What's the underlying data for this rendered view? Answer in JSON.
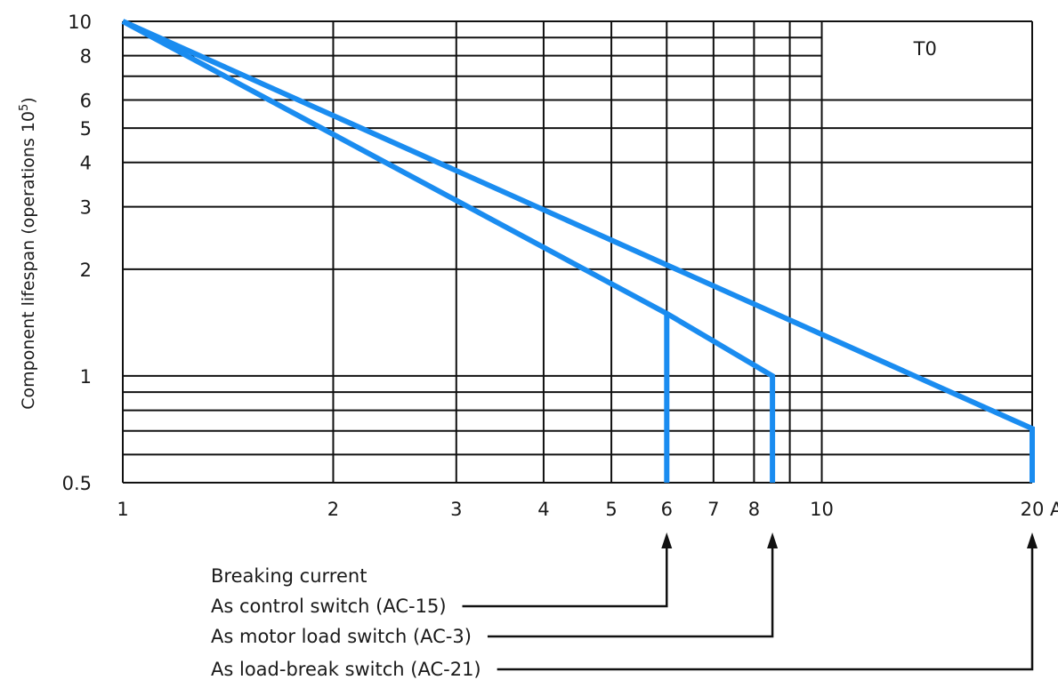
{
  "chart_data": {
    "type": "line",
    "ylabel": "Component lifespan (operations 10",
    "ylabel_sup": "5",
    "ylabel_close": ")",
    "x_scale": "log",
    "y_scale": "log",
    "xlim": [
      1,
      20
    ],
    "ylim": [
      0.5,
      10
    ],
    "x_ticks": [
      {
        "value": 1,
        "label": "1"
      },
      {
        "value": 2,
        "label": "2"
      },
      {
        "value": 3,
        "label": "3"
      },
      {
        "value": 4,
        "label": "4"
      },
      {
        "value": 5,
        "label": "5"
      },
      {
        "value": 6,
        "label": "6"
      },
      {
        "value": 7,
        "label": "7"
      },
      {
        "value": 8,
        "label": "8"
      },
      {
        "value": 10,
        "label": "10"
      },
      {
        "value": 20,
        "label": "20"
      }
    ],
    "x_unit": "A",
    "y_ticks": [
      {
        "value": 0.5,
        "label": "0.5"
      },
      {
        "value": 1,
        "label": "1"
      },
      {
        "value": 2,
        "label": "2"
      },
      {
        "value": 3,
        "label": "3"
      },
      {
        "value": 4,
        "label": "4"
      },
      {
        "value": 5,
        "label": "5"
      },
      {
        "value": 6,
        "label": "6"
      },
      {
        "value": 8,
        "label": "8"
      },
      {
        "value": 10,
        "label": "10"
      }
    ],
    "x_gridlines": [
      1,
      2,
      3,
      4,
      5,
      6,
      7,
      8,
      9,
      10,
      20
    ],
    "y_gridlines": [
      0.5,
      0.6,
      0.7,
      0.8,
      0.9,
      1,
      2,
      3,
      4,
      5,
      6,
      7,
      8,
      9,
      10
    ],
    "series_color": "#1a8cf0",
    "series": [
      {
        "points": [
          [
            1,
            10
          ],
          [
            20,
            0.71
          ],
          [
            20,
            0.5
          ]
        ]
      },
      {
        "points": [
          [
            1,
            10
          ],
          [
            6,
            1.5
          ],
          [
            8.5,
            1.0
          ],
          [
            8.5,
            0.5
          ]
        ]
      },
      {
        "points": [
          [
            6,
            1.5
          ],
          [
            6,
            0.5
          ]
        ]
      }
    ],
    "box_label": "T0",
    "annotation": {
      "heading": "Breaking current",
      "items": [
        {
          "label": "As control switch (AC-15)",
          "x": 6
        },
        {
          "label": "As motor load switch (AC-3)",
          "x": 8.5
        },
        {
          "label": "As load-break switch (AC-21)",
          "x": 20
        }
      ]
    }
  }
}
